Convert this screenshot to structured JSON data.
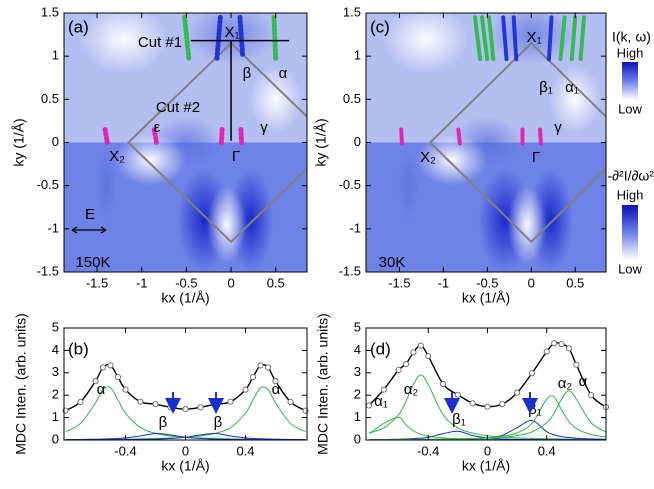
{
  "chart_data": [
    {
      "type": "image",
      "panel_label": "(a)",
      "xlabel": "kx (1/Å)",
      "ylabel": "ky (1/Å)",
      "xlim": [
        -1.87,
        0.85
      ],
      "ylim": [
        -1.5,
        1.5
      ],
      "xticks": [
        -1.5,
        -1,
        -0.5,
        0,
        0.5
      ],
      "yticks": [
        -1.5,
        -1,
        -0.5,
        0,
        0.5,
        1,
        1.5
      ],
      "annotations": [
        {
          "text": "Cut #1",
          "color": "#000000"
        },
        {
          "text": "X₁",
          "color": "#000000"
        },
        {
          "text": "β",
          "color": "#1a2fd0"
        },
        {
          "text": "α",
          "color": "#2fb84a"
        },
        {
          "text": "Cut #2",
          "color": "#000000"
        },
        {
          "text": "ε",
          "color": "#e020b0"
        },
        {
          "text": "γ",
          "color": "#e020b0"
        },
        {
          "text": "X₂",
          "color": "#000000"
        },
        {
          "text": "Γ",
          "color": "#000000"
        },
        {
          "text": "E",
          "color": "#000000"
        },
        {
          "text": "150K",
          "color": "#000000"
        }
      ]
    },
    {
      "type": "line",
      "panel_label": "(b)",
      "xlabel": "kx (1/Å)",
      "ylabel": "MDC Inten. (arb. units)",
      "xlim": [
        -0.81,
        0.81
      ],
      "ylim": [
        0,
        5
      ],
      "xticks": [
        -0.4,
        0,
        0.4
      ],
      "yticks": [
        0,
        1,
        2,
        3,
        4,
        5
      ],
      "x": [
        -0.8,
        -0.7,
        -0.6,
        -0.55,
        -0.5,
        -0.45,
        -0.4,
        -0.3,
        -0.2,
        -0.1,
        0,
        0.1,
        0.2,
        0.3,
        0.4,
        0.45,
        0.5,
        0.55,
        0.6,
        0.7,
        0.8
      ],
      "series": [
        {
          "name": "α",
          "color": "#2fb84a",
          "values": [
            0.37,
            0.74,
            1.66,
            2.26,
            2.33,
            1.79,
            1.2,
            0.55,
            0.3,
            0.18,
            0.12,
            0.087,
            0.065,
            0.05,
            0.04,
            0.036,
            0.033,
            0.03,
            0.027,
            0.023,
            0.02
          ]
        },
        {
          "name": "α",
          "color": "#2fb84a",
          "values": [
            0.02,
            0.023,
            0.027,
            0.03,
            0.033,
            0.036,
            0.04,
            0.05,
            0.065,
            0.087,
            0.12,
            0.18,
            0.3,
            0.55,
            1.2,
            1.79,
            2.33,
            2.26,
            1.66,
            0.74,
            0.37
          ]
        },
        {
          "name": "β",
          "color": "#1a2fd0",
          "values": [
            0.017,
            0.023,
            0.034,
            0.042,
            0.054,
            0.071,
            0.095,
            0.18,
            0.29,
            0.23,
            0.12,
            0.067,
            0.04,
            0.027,
            0.019,
            0.016,
            0.014,
            0.012,
            0.011,
            0.009,
            0.007
          ]
        },
        {
          "name": "β",
          "color": "#1a2fd0",
          "values": [
            0.007,
            0.009,
            0.011,
            0.012,
            0.014,
            0.016,
            0.019,
            0.027,
            0.04,
            0.067,
            0.12,
            0.23,
            0.29,
            0.18,
            0.095,
            0.071,
            0.054,
            0.042,
            0.034,
            0.023,
            0.017
          ]
        },
        {
          "color": "#000000",
          "values": [
            1.31,
            1.7,
            2.63,
            3.24,
            3.33,
            2.81,
            2.25,
            1.71,
            1.6,
            1.46,
            1.38,
            1.46,
            1.6,
            1.71,
            2.25,
            2.81,
            3.33,
            3.24,
            2.63,
            1.7,
            1.31
          ]
        }
      ]
    },
    {
      "type": "image",
      "panel_label": "(c)",
      "xlabel": "kx (1/Å)",
      "ylabel": "ky (1/Å)",
      "xlim": [
        -1.88,
        0.85
      ],
      "ylim": [
        -1.5,
        1.5
      ],
      "xticks": [
        -1.5,
        -1,
        -0.5,
        0,
        0.5
      ],
      "yticks": [
        -1.5,
        -1,
        -0.5,
        0,
        0.5,
        1,
        1.5
      ],
      "annotations": [
        {
          "text": "X₁",
          "color": "#000000"
        },
        {
          "text": "β₁",
          "color": "#1a2fd0"
        },
        {
          "text": "α₁",
          "color": "#2fb84a"
        },
        {
          "text": "γ",
          "color": "#e020b0"
        },
        {
          "text": "X₂",
          "color": "#000000"
        },
        {
          "text": "Γ",
          "color": "#000000"
        },
        {
          "text": "30K",
          "color": "#000000"
        }
      ]
    },
    {
      "type": "line",
      "panel_label": "(d)",
      "xlabel": "kx (1/Å)",
      "ylabel": "MDC Inten. (arb. units)",
      "xlim": [
        -0.82,
        0.8
      ],
      "ylim": [
        0,
        5
      ],
      "xticks": [
        -0.4,
        0,
        0.4
      ],
      "yticks": [
        0,
        1,
        2,
        3,
        4,
        5
      ],
      "x": [
        -0.8,
        -0.7,
        -0.6,
        -0.55,
        -0.5,
        -0.45,
        -0.4,
        -0.3,
        -0.2,
        -0.1,
        0,
        0.1,
        0.2,
        0.3,
        0.4,
        0.45,
        0.5,
        0.55,
        0.6,
        0.7,
        0.8
      ],
      "series": [
        {
          "name": "α₁",
          "color": "#2fb84a",
          "values": [
            0.28,
            0.74,
            1.01,
            0.67,
            0.41,
            0.26,
            0.17,
            0.09,
            0.056,
            0.038,
            0.027,
            0.02,
            0.016,
            0.013,
            0.01,
            0.009,
            0.008,
            0.008,
            0.007,
            0.006,
            0.005
          ]
        },
        {
          "name": "α₂",
          "color": "#2fb84a",
          "values": [
            0.31,
            0.54,
            1.13,
            1.72,
            2.48,
            2.9,
            2.48,
            1.13,
            0.54,
            0.31,
            0.19,
            0.13,
            0.096,
            0.072,
            0.057,
            0.051,
            0.046,
            0.041,
            0.037,
            0.031,
            0.026
          ]
        },
        {
          "name": "β₁",
          "color": "#1a2fd0",
          "values": [
            0.016,
            0.024,
            0.036,
            0.047,
            0.062,
            0.086,
            0.12,
            0.28,
            0.39,
            0.2,
            0.092,
            0.049,
            0.03,
            0.02,
            0.014,
            0.013,
            0.011,
            0.01,
            0.009,
            0.007,
            0.006
          ]
        },
        {
          "name": "β₁",
          "color": "#1a2fd0",
          "values": [
            0.008,
            0.009,
            0.012,
            0.013,
            0.015,
            0.017,
            0.019,
            0.026,
            0.038,
            0.058,
            0.1,
            0.21,
            0.55,
            0.87,
            0.37,
            0.23,
            0.15,
            0.11,
            0.08,
            0.048,
            0.031
          ]
        },
        {
          "name": "α₂",
          "color": "#2fb84a",
          "values": [
            0.013,
            0.016,
            0.019,
            0.02,
            0.023,
            0.025,
            0.029,
            0.037,
            0.049,
            0.069,
            0.1,
            0.17,
            0.32,
            0.74,
            1.83,
            1.92,
            1.34,
            0.82,
            0.51,
            0.24,
            0.14
          ]
        },
        {
          "name": "α",
          "color": "#2fb84a",
          "values": [
            0.015,
            0.017,
            0.02,
            0.022,
            0.024,
            0.026,
            0.029,
            0.036,
            0.046,
            0.061,
            0.085,
            0.12,
            0.2,
            0.36,
            0.77,
            1.2,
            1.82,
            2.2,
            1.82,
            0.77,
            0.36
          ]
        },
        {
          "color": "#000000",
          "values": [
            1.54,
            2.25,
            3.13,
            3.39,
            3.91,
            4.21,
            3.75,
            2.5,
            2.02,
            1.64,
            1.49,
            1.6,
            2.11,
            2.98,
            3.95,
            4.32,
            4.28,
            4.09,
            3.36,
            2.0,
            1.47
          ]
        }
      ]
    }
  ],
  "colorbars": [
    {
      "label": "I(k, ω)",
      "high": "High",
      "low": "Low"
    },
    {
      "label": "-∂²I/∂ω²",
      "high": "High",
      "low": "Low"
    }
  ]
}
